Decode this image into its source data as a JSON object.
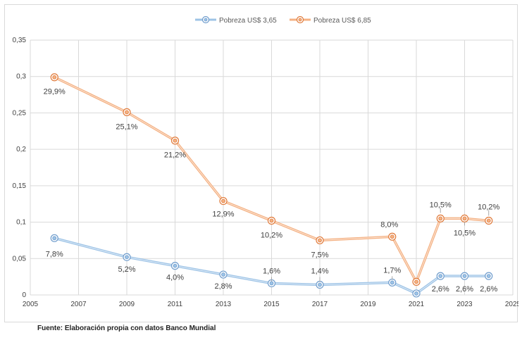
{
  "chart_data": {
    "type": "line",
    "title": "",
    "xlabel": "",
    "ylabel": "",
    "xlim": [
      2005,
      2025
    ],
    "ylim": [
      0,
      0.35
    ],
    "x_ticks": [
      "2005",
      "2007",
      "2009",
      "2011",
      "2013",
      "2015",
      "2017",
      "2019",
      "2021",
      "2023",
      "2025"
    ],
    "y_ticks": [
      "0",
      "0,05",
      "0,1",
      "0,15",
      "0,2",
      "0,25",
      "0,3",
      "0,35"
    ],
    "grid": true,
    "legend_position": "top-center",
    "series": [
      {
        "name": "Pobreza US$ 3,65",
        "color": "#9dc3e6",
        "x": [
          2006,
          2009,
          2011,
          2013,
          2015,
          2017,
          2020,
          2021,
          2022,
          2023,
          2024
        ],
        "y": [
          0.078,
          0.052,
          0.04,
          0.028,
          0.016,
          0.014,
          0.017,
          0.002,
          0.026,
          0.026,
          0.026
        ],
        "labels": [
          "7,8%",
          "5,2%",
          "4,0%",
          "2,8%",
          "1,6%",
          "1,4%",
          "1,7%",
          "",
          "2,6%",
          "2,6%",
          "2,6%"
        ]
      },
      {
        "name": "Pobreza US$ 6,85",
        "color": "#f4b183",
        "x": [
          2006,
          2009,
          2011,
          2013,
          2015,
          2017,
          2020,
          2021,
          2022,
          2023,
          2024
        ],
        "y": [
          0.299,
          0.251,
          0.212,
          0.129,
          0.102,
          0.075,
          0.08,
          0.018,
          0.105,
          0.105,
          0.102
        ],
        "labels": [
          "29,9%",
          "25,1%",
          "21,2%",
          "12,9%",
          "10,2%",
          "7,5%",
          "8,0%",
          "",
          "10,5%",
          "10,5%",
          "10,2%"
        ]
      }
    ]
  },
  "source_note": "Fuente: Elaboración propia con datos Banco Mundial"
}
